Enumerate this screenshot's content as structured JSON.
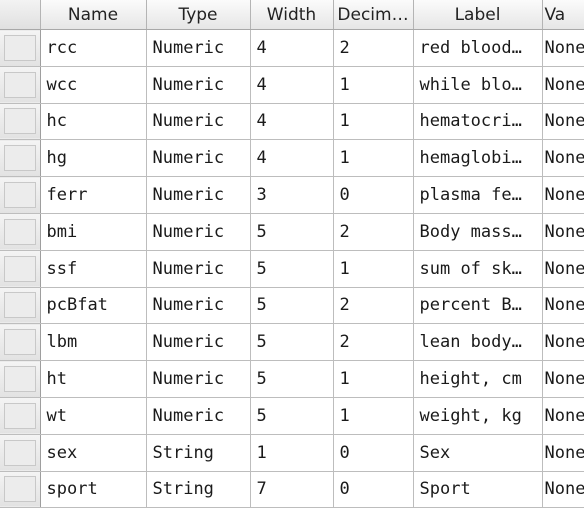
{
  "columns": [
    "",
    "Name",
    "Type",
    "Width",
    "Decim…",
    "Label",
    "Va"
  ],
  "rows": [
    {
      "name": "rcc",
      "type": "Numeric",
      "width": "4",
      "decimals": "2",
      "label": "red blood…",
      "values": "None"
    },
    {
      "name": "wcc",
      "type": "Numeric",
      "width": "4",
      "decimals": "1",
      "label": "while blo…",
      "values": "None"
    },
    {
      "name": "hc",
      "type": "Numeric",
      "width": "4",
      "decimals": "1",
      "label": "hematocri…",
      "values": "None"
    },
    {
      "name": "hg",
      "type": "Numeric",
      "width": "4",
      "decimals": "1",
      "label": "hemaglobi…",
      "values": "None"
    },
    {
      "name": "ferr",
      "type": "Numeric",
      "width": "3",
      "decimals": "0",
      "label": "plasma fe…",
      "values": "None"
    },
    {
      "name": "bmi",
      "type": "Numeric",
      "width": "5",
      "decimals": "2",
      "label": "Body mass…",
      "values": "None"
    },
    {
      "name": "ssf",
      "type": "Numeric",
      "width": "5",
      "decimals": "1",
      "label": "sum of sk…",
      "values": "None"
    },
    {
      "name": "pcBfat",
      "type": "Numeric",
      "width": "5",
      "decimals": "2",
      "label": "percent B…",
      "values": "None"
    },
    {
      "name": "lbm",
      "type": "Numeric",
      "width": "5",
      "decimals": "2",
      "label": "lean body…",
      "values": "None"
    },
    {
      "name": "ht",
      "type": "Numeric",
      "width": "5",
      "decimals": "1",
      "label": "height, cm",
      "values": "None"
    },
    {
      "name": "wt",
      "type": "Numeric",
      "width": "5",
      "decimals": "1",
      "label": "weight, kg",
      "values": "None"
    },
    {
      "name": "sex",
      "type": "String",
      "width": "1",
      "decimals": "0",
      "label": "Sex",
      "values": "None"
    },
    {
      "name": "sport",
      "type": "String",
      "width": "7",
      "decimals": "0",
      "label": "Sport",
      "values": "None"
    }
  ]
}
